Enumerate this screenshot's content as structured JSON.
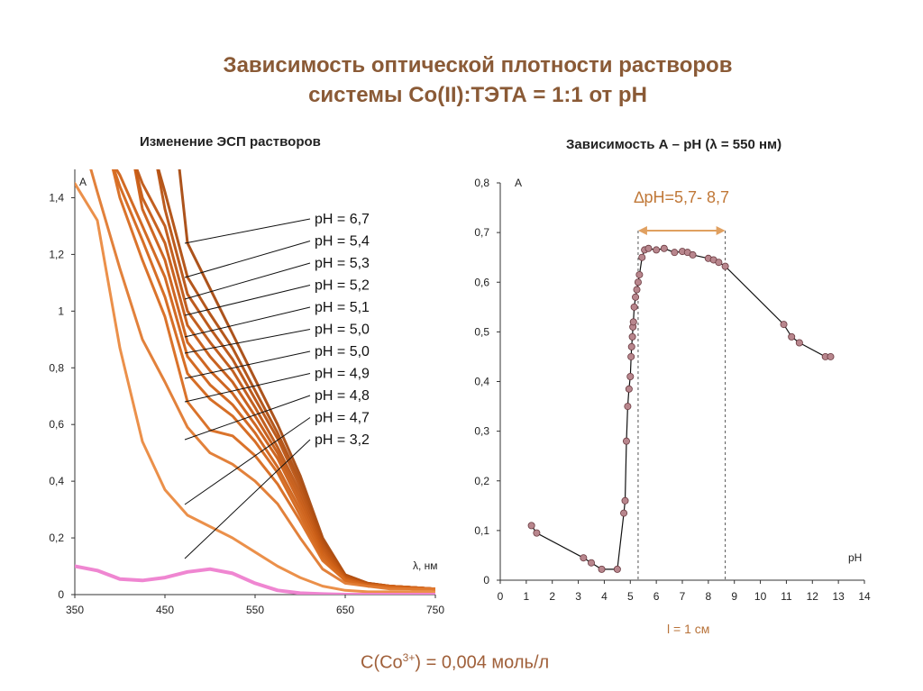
{
  "title": {
    "line1": "Зависимость оптической плотности растворов",
    "line2": "системы Co(II):ТЭТА = 1:1 от рН"
  },
  "colors": {
    "spectrum": "#c85d14",
    "spectrum_light": "#e68a3e",
    "spectrum_pink": "#ee7fcf",
    "marker": "#b8868d",
    "arrow": "#e0a060",
    "title": "#8a5a36"
  },
  "chart_data": [
    {
      "type": "line",
      "title": "Изменение ЭСП растворов",
      "xlabel": "λ, нм",
      "ylabel": "A",
      "xlim": [
        350,
        750
      ],
      "ylim": [
        0,
        1.5
      ],
      "xticks": [
        "350",
        "450",
        "550",
        "650",
        "750"
      ],
      "yticks": [
        "0",
        "0,2",
        "0,4",
        "0,6",
        "0,8",
        "1",
        "1,2",
        "1,4"
      ],
      "legend": [
        "pH = 6,7",
        "pH = 5,4",
        "pH = 5,3",
        "pH = 5,2",
        "pH = 5,1",
        "pH = 5,0",
        "pH = 5,0",
        "pH = 4,9",
        "pH = 4,8",
        "pH = 4,7",
        "pH = 3,2"
      ],
      "x": [
        350,
        375,
        400,
        425,
        450,
        475,
        500,
        525,
        550,
        575,
        600,
        625,
        650,
        675,
        700,
        725,
        750
      ],
      "series": [
        {
          "name": "pH = 6,7",
          "values": [
            null,
            null,
            null,
            null,
            null,
            1.24,
            1.08,
            0.92,
            0.76,
            0.6,
            0.42,
            0.2,
            0.07,
            0.04,
            0.03,
            0.025,
            0.02
          ]
        },
        {
          "name": "pH = 5,4",
          "values": [
            null,
            null,
            null,
            null,
            1.42,
            1.12,
            0.99,
            0.87,
            0.72,
            0.57,
            0.4,
            0.19,
            0.07,
            0.04,
            0.03,
            0.025,
            0.02
          ]
        },
        {
          "name": "pH = 5,3",
          "values": [
            null,
            null,
            null,
            null,
            1.36,
            1.06,
            0.94,
            0.83,
            0.69,
            0.55,
            0.38,
            0.18,
            0.065,
            0.04,
            0.03,
            0.025,
            0.02
          ]
        },
        {
          "name": "pH = 5,2",
          "values": [
            null,
            null,
            null,
            1.45,
            1.3,
            1.0,
            0.89,
            0.79,
            0.66,
            0.52,
            0.36,
            0.17,
            0.06,
            0.035,
            0.03,
            0.025,
            0.02
          ]
        },
        {
          "name": "pH = 5,1",
          "values": [
            null,
            null,
            null,
            1.4,
            1.24,
            0.95,
            0.84,
            0.75,
            0.63,
            0.5,
            0.34,
            0.16,
            0.06,
            0.035,
            0.03,
            0.025,
            0.02
          ]
        },
        {
          "name": "pH = 5,0",
          "values": [
            null,
            null,
            null,
            1.36,
            1.18,
            0.89,
            0.79,
            0.71,
            0.6,
            0.48,
            0.32,
            0.15,
            0.055,
            0.035,
            0.03,
            0.025,
            0.02
          ]
        },
        {
          "name": "pH = 5,0",
          "values": [
            null,
            null,
            1.48,
            1.3,
            1.12,
            0.84,
            0.74,
            0.67,
            0.57,
            0.45,
            0.3,
            0.14,
            0.055,
            0.035,
            0.03,
            0.025,
            0.02
          ]
        },
        {
          "name": "pH = 4,9",
          "values": [
            null,
            null,
            1.44,
            1.25,
            1.05,
            0.78,
            0.69,
            0.63,
            0.54,
            0.43,
            0.28,
            0.13,
            0.05,
            0.03,
            0.025,
            0.02,
            0.02
          ]
        },
        {
          "name": "pH = 4,8",
          "values": [
            null,
            null,
            1.4,
            1.18,
            0.98,
            0.68,
            0.58,
            0.56,
            0.49,
            0.39,
            0.26,
            0.12,
            0.05,
            0.03,
            0.025,
            0.02,
            0.02
          ]
        },
        {
          "name": "pH = 4,7",
          "values": [
            null,
            1.42,
            1.15,
            0.9,
            0.75,
            0.59,
            0.5,
            0.46,
            0.4,
            0.32,
            0.2,
            0.09,
            0.04,
            0.03,
            0.02,
            0.02,
            0.02
          ]
        },
        {
          "name": "pH = 3,2",
          "values": [
            1.45,
            1.32,
            0.87,
            0.54,
            0.37,
            0.28,
            0.24,
            0.2,
            0.15,
            0.1,
            0.06,
            0.03,
            0.015,
            0.01,
            0.01,
            0.01,
            0.01
          ]
        },
        {
          "name": "pink",
          "values": [
            0.1,
            0.085,
            0.055,
            0.05,
            0.06,
            0.08,
            0.09,
            0.075,
            0.04,
            0.015,
            0.005,
            0.002,
            0.0,
            0.0,
            0.0,
            0.0,
            0.0
          ]
        }
      ]
    },
    {
      "type": "scatter",
      "title": "Зависимость А – рН (λ = 550 нм)",
      "xlabel": "pH",
      "ylabel": "A",
      "xlim": [
        0,
        14
      ],
      "ylim": [
        0,
        0.8
      ],
      "xticks": [
        "0",
        "1",
        "2",
        "3",
        "4",
        "5",
        "6",
        "7",
        "8",
        "9",
        "10",
        "11",
        "12",
        "13",
        "14"
      ],
      "yticks": [
        "0",
        "0,1",
        "0,2",
        "0,3",
        "0,4",
        "0,5",
        "0,6",
        "0,7",
        "0,8"
      ],
      "annotation": "∆pH=5,7- 8,7",
      "dashed_x": [
        5.3,
        8.65
      ],
      "x": [
        1.2,
        1.4,
        3.2,
        3.5,
        3.9,
        4.5,
        4.75,
        4.8,
        4.85,
        4.9,
        4.95,
        5.0,
        5.03,
        5.05,
        5.08,
        5.1,
        5.12,
        5.15,
        5.2,
        5.25,
        5.3,
        5.35,
        5.45,
        5.55,
        5.7,
        6.0,
        6.3,
        6.7,
        7.0,
        7.2,
        7.4,
        8.0,
        8.2,
        8.4,
        8.65,
        10.9,
        11.2,
        11.5,
        12.5,
        12.7
      ],
      "values": [
        0.11,
        0.095,
        0.045,
        0.035,
        0.022,
        0.022,
        0.135,
        0.16,
        0.28,
        0.35,
        0.385,
        0.41,
        0.45,
        0.47,
        0.49,
        0.51,
        0.52,
        0.55,
        0.57,
        0.585,
        0.6,
        0.615,
        0.65,
        0.665,
        0.668,
        0.665,
        0.668,
        0.66,
        0.662,
        0.66,
        0.655,
        0.648,
        0.645,
        0.64,
        0.632,
        0.515,
        0.49,
        0.478,
        0.45,
        0.45
      ]
    }
  ],
  "footer": {
    "path_length": "l = 1 см",
    "concentration_prefix": "С(Со",
    "concentration_sup": "3+",
    "concentration_suffix": ") = 0,004 моль/л"
  }
}
